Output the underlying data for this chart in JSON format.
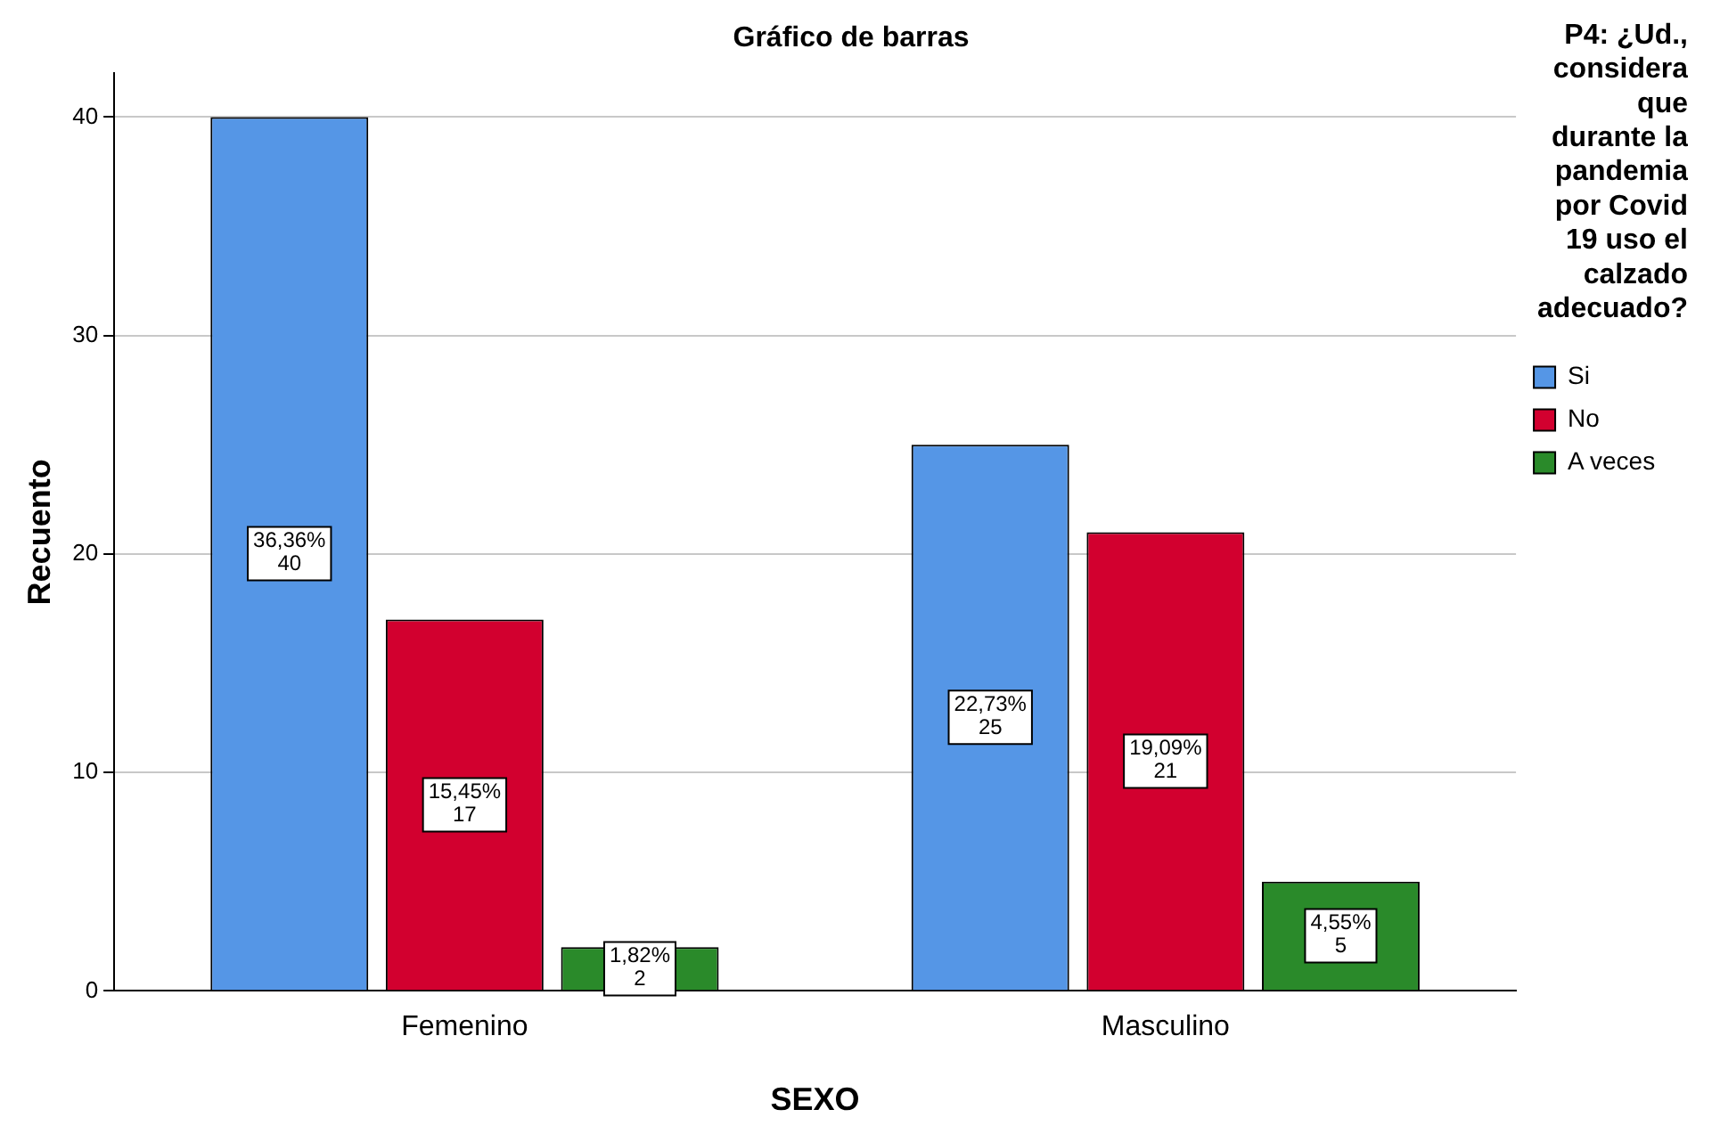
{
  "chart_data": {
    "type": "bar",
    "title": "Gráfico de barras",
    "xlabel": "SEXO",
    "ylabel": "Recuento",
    "legend_title": "P4: ¿Ud., considera que durante la pandemia por Covid 19 uso el calzado adecuado?",
    "categories": [
      "Femenino",
      "Masculino"
    ],
    "series": [
      {
        "name": "Si",
        "color": "#5596e6",
        "values": [
          40,
          25
        ],
        "value_labels": [
          "36,36%\n40",
          "22,73%\n25"
        ]
      },
      {
        "name": "No",
        "color": "#d2002f",
        "values": [
          17,
          21
        ],
        "value_labels": [
          "15,45%\n17",
          "19,09%\n21"
        ]
      },
      {
        "name": "A veces",
        "color": "#2a8a2a",
        "values": [
          2,
          5
        ],
        "value_labels": [
          "1,82%\n2",
          "4,55%\n5"
        ]
      }
    ],
    "ylim": [
      0,
      42
    ],
    "yticks": [
      0,
      10,
      20,
      30,
      40
    ],
    "grid": "y",
    "legend": "right"
  }
}
